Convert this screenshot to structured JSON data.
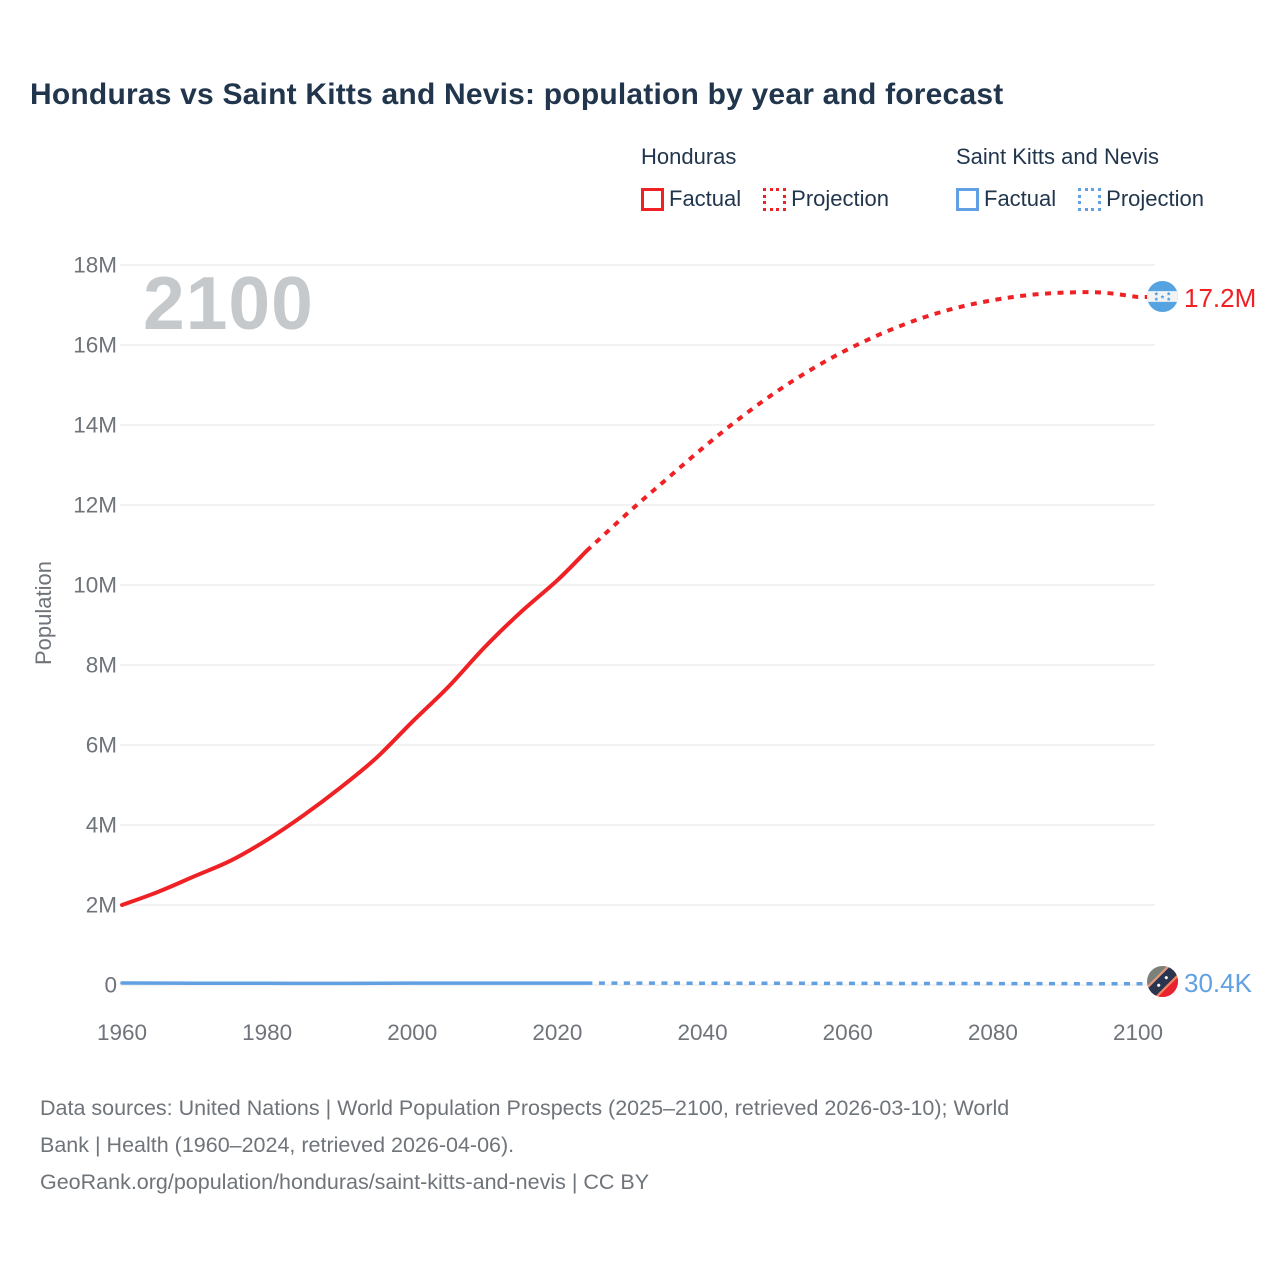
{
  "title": "Honduras vs Saint Kitts and Nevis: population by year and forecast",
  "watermark": "2100",
  "legend": {
    "honduras": {
      "label": "Honduras",
      "factual": "Factual",
      "projection": "Projection"
    },
    "saint_kitts": {
      "label": "Saint Kitts and Nevis",
      "factual": "Factual",
      "projection": "Projection"
    }
  },
  "end_labels": {
    "honduras": "17.2M",
    "saint_kitts": "30.4K"
  },
  "axes": {
    "y_label": "Population"
  },
  "colors": {
    "honduras": "#ef2125",
    "saint_kitts": "#61a0e3",
    "title_text": "#21364d",
    "axis_text": "#6f747a",
    "grid": "#ededee",
    "watermark": "#c6c9cc"
  },
  "footer": {
    "lines": [
      "Data sources: United Nations | World Population Prospects (2025–2100, retrieved 2026-03-10); World",
      "Bank | Health (1960–2024, retrieved 2026-04-06).",
      "GeoRank.org/population/honduras/saint-kitts-and-nevis | CC BY"
    ]
  },
  "chart_data": {
    "type": "line",
    "title": "Honduras vs Saint Kitts and Nevis: population by year and forecast",
    "xlabel": "",
    "ylabel": "Population",
    "x_ticks": [
      1960,
      1980,
      2000,
      2020,
      2040,
      2060,
      2080,
      2100
    ],
    "x_tick_labels": [
      "1960",
      "1980",
      "2000",
      "2020",
      "2040",
      "2060",
      "2080",
      "2100"
    ],
    "y_ticks_millions": [
      0,
      2,
      4,
      6,
      8,
      10,
      12,
      14,
      16,
      18
    ],
    "y_tick_labels": [
      "0",
      "2M",
      "4M",
      "6M",
      "8M",
      "10M",
      "12M",
      "14M",
      "16M",
      "18M"
    ],
    "x_domain": [
      1960,
      2100
    ],
    "ylim_millions": [
      0,
      18
    ],
    "grid": "horizontal-only",
    "legend_position": "top-right",
    "series": [
      {
        "name": "Honduras",
        "kind": "factual",
        "style": "solid",
        "color_key": "honduras",
        "width": 4,
        "points_year_millions": [
          [
            1960,
            2.0
          ],
          [
            1965,
            2.33
          ],
          [
            1970,
            2.72
          ],
          [
            1975,
            3.11
          ],
          [
            1980,
            3.63
          ],
          [
            1985,
            4.24
          ],
          [
            1990,
            4.92
          ],
          [
            1995,
            5.67
          ],
          [
            2000,
            6.58
          ],
          [
            2005,
            7.46
          ],
          [
            2010,
            8.45
          ],
          [
            2015,
            9.33
          ],
          [
            2020,
            10.12
          ],
          [
            2024,
            10.85
          ]
        ]
      },
      {
        "name": "Honduras",
        "kind": "projection",
        "style": "dashed",
        "color_key": "honduras",
        "width": 4,
        "extend_to_flag": true,
        "points_year_millions": [
          [
            2024,
            10.85
          ],
          [
            2030,
            11.85
          ],
          [
            2035,
            12.64
          ],
          [
            2040,
            13.42
          ],
          [
            2045,
            14.15
          ],
          [
            2050,
            14.81
          ],
          [
            2055,
            15.39
          ],
          [
            2060,
            15.89
          ],
          [
            2065,
            16.31
          ],
          [
            2070,
            16.66
          ],
          [
            2075,
            16.93
          ],
          [
            2080,
            17.12
          ],
          [
            2085,
            17.25
          ],
          [
            2090,
            17.31
          ],
          [
            2095,
            17.31
          ],
          [
            2100,
            17.2
          ]
        ]
      },
      {
        "name": "Saint Kitts and Nevis",
        "kind": "factual",
        "style": "solid",
        "color_key": "saint_kitts",
        "width": 3.5,
        "points_year_millions": [
          [
            1960,
            0.051
          ],
          [
            1970,
            0.045
          ],
          [
            1980,
            0.043
          ],
          [
            1990,
            0.04
          ],
          [
            2000,
            0.046
          ],
          [
            2010,
            0.048
          ],
          [
            2020,
            0.047
          ],
          [
            2024,
            0.047
          ]
        ]
      },
      {
        "name": "Saint Kitts and Nevis",
        "kind": "projection",
        "style": "dashed",
        "color_key": "saint_kitts",
        "width": 3.5,
        "extend_to_flag": true,
        "points_year_millions": [
          [
            2024,
            0.047
          ],
          [
            2030,
            0.046
          ],
          [
            2040,
            0.045
          ],
          [
            2050,
            0.043
          ],
          [
            2060,
            0.041
          ],
          [
            2070,
            0.038
          ],
          [
            2080,
            0.036
          ],
          [
            2090,
            0.033
          ],
          [
            2100,
            0.0304
          ]
        ]
      }
    ],
    "end_values": {
      "Honduras_2100": "17.2M",
      "Saint_Kitts_and_Nevis_2100": "30.4K"
    }
  }
}
